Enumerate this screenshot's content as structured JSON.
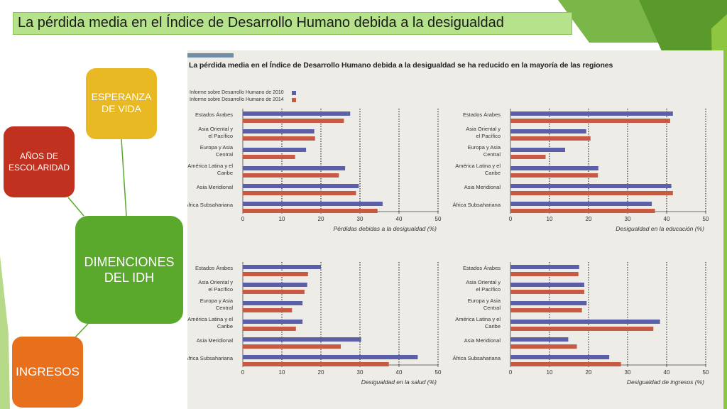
{
  "slide_title": "La pérdida media en el Índice de Desarrollo Humano debida a la desigualdad",
  "diagram": {
    "esperanza": "ESPERANZA DE VIDA",
    "escolaridad": "AÑOS DE ESCOLARIDAD",
    "center": "DIMENCIONES DEL IDH",
    "ingresos": "INGRESOS",
    "colors": {
      "yellow": "#e8b923",
      "red": "#c0311f",
      "green": "#5aa82c",
      "orange": "#e8701d"
    }
  },
  "figure_title": "La pérdida media en el Índice de Desarrollo Humano debida a la desigualdad se ha reducido en la mayoría de las regiones",
  "legend": [
    {
      "label": "Informe sobre Desarrollo Humano de 2010",
      "color": "#5b5fa8"
    },
    {
      "label": "Informe sobre Desarrollo Humano de 2014",
      "color": "#c85a44"
    }
  ],
  "chart_data": [
    {
      "type": "bar",
      "orientation": "horizontal",
      "xlabel": "Pérdidas debidas a la desigualdad (%)",
      "xlim": [
        0,
        50
      ],
      "ticks": [
        "0",
        "10",
        "20",
        "30",
        "40",
        "50"
      ],
      "categories": [
        [
          "Estados Árabes"
        ],
        [
          "Asia Oriental y",
          "el Pacífico"
        ],
        [
          "Europa y Asia",
          "Central"
        ],
        [
          "América Latina y el",
          "Caribe"
        ],
        [
          "Asia Meridional"
        ],
        [
          "África Subsahariana"
        ]
      ],
      "series": [
        {
          "name": "Informe sobre Desarrollo Humano de 2010",
          "values": [
            27.5,
            18.3,
            16.2,
            26.2,
            29.7,
            35.8
          ]
        },
        {
          "name": "Informe sobre Desarrollo Humano de 2014",
          "values": [
            25.9,
            18.5,
            13.4,
            24.6,
            29.0,
            34.5
          ]
        }
      ]
    },
    {
      "type": "bar",
      "orientation": "horizontal",
      "xlabel": "Desigualdad en la educación (%)",
      "xlim": [
        0,
        50
      ],
      "ticks": [
        "0",
        "10",
        "20",
        "30",
        "40",
        "50"
      ],
      "categories": [
        [
          "Estados Árabes"
        ],
        [
          "Asia Oriental y",
          "el Pacífico"
        ],
        [
          "Europa y Asia",
          "Central"
        ],
        [
          "América Latina y el",
          "Caribe"
        ],
        [
          "Asia Meridional"
        ],
        [
          "África Subsahariana"
        ]
      ],
      "series": [
        {
          "name": "Informe sobre Desarrollo Humano de 2010",
          "values": [
            41.6,
            19.4,
            14.0,
            22.5,
            41.2,
            36.2
          ]
        },
        {
          "name": "Informe sobre Desarrollo Humano de 2014",
          "values": [
            40.9,
            20.5,
            9.0,
            22.4,
            41.6,
            37.0
          ]
        }
      ]
    },
    {
      "type": "bar",
      "orientation": "horizontal",
      "xlabel": "Desigualdad en la salud (%)",
      "xlim": [
        0,
        50
      ],
      "ticks": [
        "0",
        "10",
        "20",
        "30",
        "40",
        "50"
      ],
      "categories": [
        [
          "Estados Árabes"
        ],
        [
          "Asia Oriental y",
          "el Pacífico"
        ],
        [
          "Europa y Asia",
          "Central"
        ],
        [
          "América Latina y el",
          "Caribe"
        ],
        [
          "Asia Meridional"
        ],
        [
          "África Subsahariana"
        ]
      ],
      "series": [
        {
          "name": "Informe sobre Desarrollo Humano de 2010",
          "values": [
            20.0,
            16.5,
            15.3,
            15.3,
            30.3,
            44.8
          ]
        },
        {
          "name": "Informe sobre Desarrollo Humano de 2014",
          "values": [
            16.7,
            15.8,
            12.6,
            13.6,
            25.1,
            37.4
          ]
        }
      ]
    },
    {
      "type": "bar",
      "orientation": "horizontal",
      "xlabel": "Desigualdad de ingresos (%)",
      "xlim": [
        0,
        50
      ],
      "ticks": [
        "0",
        "10",
        "20",
        "30",
        "40",
        "50"
      ],
      "categories": [
        [
          "Estados Árabes"
        ],
        [
          "Asia Oriental y",
          "el Pacífico"
        ],
        [
          "Europa y Asia",
          "Central"
        ],
        [
          "América Latina y el",
          "Caribe"
        ],
        [
          "Asia Meridional"
        ],
        [
          "África Subsahariana"
        ]
      ],
      "series": [
        {
          "name": "Informe sobre Desarrollo Humano de 2010",
          "values": [
            17.6,
            18.9,
            19.5,
            38.3,
            14.8,
            25.3
          ]
        },
        {
          "name": "Informe sobre Desarrollo Humano de 2014",
          "values": [
            17.4,
            18.9,
            18.3,
            36.6,
            17.0,
            28.3
          ]
        }
      ]
    }
  ]
}
